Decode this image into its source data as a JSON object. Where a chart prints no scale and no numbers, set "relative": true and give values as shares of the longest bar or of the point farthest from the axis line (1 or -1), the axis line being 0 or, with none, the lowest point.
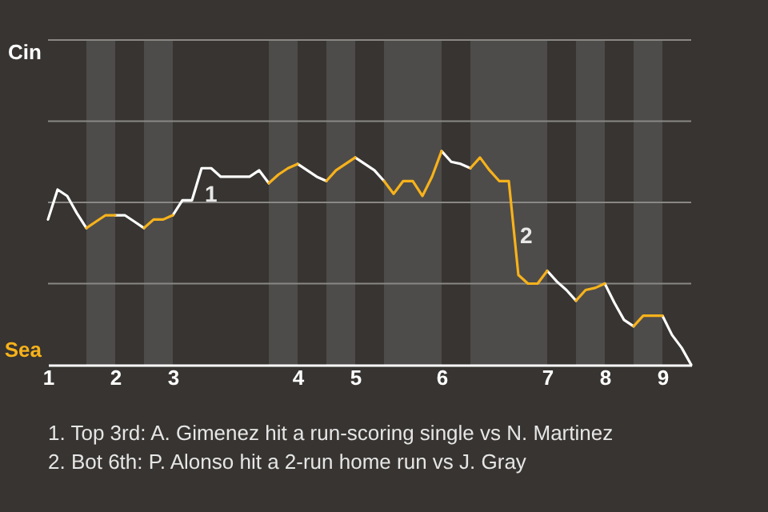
{
  "chart_data": {
    "type": "line",
    "relative": true,
    "categories": [
      "1",
      null,
      null,
      null,
      null,
      null,
      null,
      "2",
      null,
      null,
      null,
      null,
      null,
      "3",
      null,
      null,
      null,
      null,
      null,
      null,
      null,
      null,
      null,
      null,
      null,
      null,
      "4",
      null,
      null,
      null,
      null,
      null,
      "5",
      null,
      null,
      null,
      null,
      null,
      null,
      null,
      null,
      "6",
      null,
      null,
      null,
      null,
      null,
      null,
      null,
      null,
      null,
      null,
      "7",
      null,
      null,
      null,
      null,
      null,
      "8",
      null,
      null,
      null,
      null,
      null,
      "9",
      null,
      null,
      null
    ],
    "ref_lines": [
      {
        "axis": "y",
        "value": 0.38,
        "color": "#8a8885"
      },
      {
        "axis": "y",
        "value": 0.76,
        "color": "#8a8885"
      },
      {
        "axis": "y",
        "value": 1.14,
        "color": "#8a8885"
      },
      {
        "axis": "y",
        "value": 1.52,
        "color": "#8a8885"
      }
    ],
    "series": [
      {
        "color": "#ffffff",
        "values": [
          0.68,
          0.82,
          0.79,
          0.71,
          0.64,
          null,
          null,
          0.7,
          0.7,
          0.67,
          0.64,
          null,
          null,
          0.7,
          0.77,
          0.77,
          0.92,
          0.92,
          0.88,
          0.88,
          0.88,
          0.88,
          0.91,
          0.85,
          null,
          null,
          0.94,
          0.91,
          0.88,
          0.86,
          null,
          null,
          0.97,
          0.94,
          0.91,
          0.86,
          null,
          null,
          null,
          null,
          null,
          1,
          0.95,
          0.94,
          0.92,
          null,
          null,
          null,
          null,
          null,
          null,
          null,
          0.44,
          0.39,
          0.35,
          0.3,
          null,
          null,
          0.38,
          0.29,
          0.21,
          0.18,
          null,
          null,
          0.23,
          0.14,
          0.08,
          0
        ]
      },
      {
        "color": "#f7b21b",
        "values": [
          null,
          null,
          null,
          null,
          0.64,
          0.67,
          0.7,
          0.7,
          null,
          null,
          0.64,
          0.68,
          0.68,
          0.7,
          null,
          null,
          null,
          null,
          null,
          null,
          null,
          null,
          null,
          0.85,
          0.89,
          0.92,
          0.94,
          null,
          null,
          0.86,
          0.91,
          0.94,
          0.97,
          null,
          null,
          0.86,
          0.8,
          0.86,
          0.86,
          0.79,
          0.88,
          1,
          null,
          null,
          0.92,
          0.97,
          0.91,
          0.86,
          0.86,
          0.42,
          0.38,
          0.38,
          0.44,
          null,
          null,
          0.3,
          0.35,
          0.36,
          0.38,
          null,
          null,
          0.18,
          0.23,
          0.23,
          0.23,
          null,
          null,
          null
        ]
      }
    ],
    "annotations": [
      "Cin",
      "Sea",
      "1",
      "2",
      "1. Top 3rd: A. Gimenez hit a run-scoring single vs N. Martinez",
      "2. Bot 6th: P. Alonso hit a 2-run home run vs J. Gray"
    ]
  }
}
